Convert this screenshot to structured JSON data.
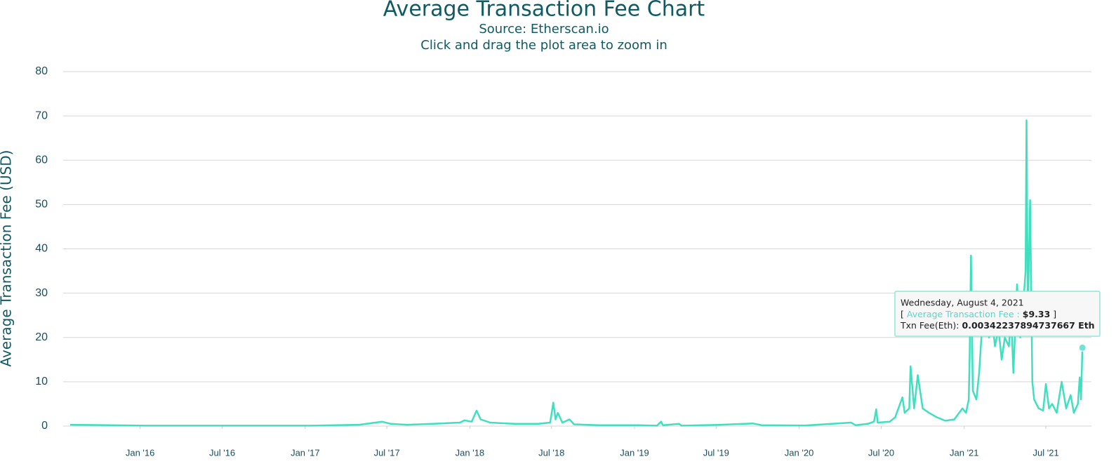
{
  "chart_data": {
    "type": "line",
    "title": "Average Transaction Fee Chart",
    "subtitle": "Source: Etherscan.io",
    "annotation": "Click and drag the plot area to zoom in",
    "y_label": "Average Transaction Fee (USD)",
    "x": [
      "2015-07-30",
      "2016-01-15",
      "2016-07-15",
      "2017-01-15",
      "2017-05-01",
      "2017-06-20",
      "2017-07-10",
      "2017-08-15",
      "2017-10-10",
      "2017-12-10",
      "2017-12-20",
      "2018-01-05",
      "2018-01-16",
      "2018-01-25",
      "2018-02-15",
      "2018-04-10",
      "2018-06-01",
      "2018-06-28",
      "2018-07-05",
      "2018-07-10",
      "2018-07-15",
      "2018-07-25",
      "2018-08-10",
      "2018-08-20",
      "2018-10-15",
      "2019-01-10",
      "2019-02-20",
      "2019-03-01",
      "2019-03-05",
      "2019-04-10",
      "2019-04-15",
      "2019-07-10",
      "2019-09-20",
      "2019-10-10",
      "2020-01-15",
      "2020-04-25",
      "2020-05-05",
      "2020-06-01",
      "2020-06-15",
      "2020-06-20",
      "2020-06-23",
      "2020-07-20",
      "2020-08-01",
      "2020-08-17",
      "2020-08-22",
      "2020-09-01",
      "2020-09-04",
      "2020-09-12",
      "2020-09-20",
      "2020-10-01",
      "2020-10-15",
      "2020-11-01",
      "2020-11-20",
      "2020-12-10",
      "2020-12-28",
      "2021-01-05",
      "2021-01-11",
      "2021-01-13",
      "2021-01-16",
      "2021-01-20",
      "2021-01-28",
      "2021-02-03",
      "2021-02-08",
      "2021-02-15",
      "2021-02-20",
      "2021-02-25",
      "2021-03-03",
      "2021-03-10",
      "2021-03-18",
      "2021-03-25",
      "2021-04-01",
      "2021-04-10",
      "2021-04-15",
      "2021-04-20",
      "2021-04-28",
      "2021-05-05",
      "2021-05-12",
      "2021-05-17",
      "2021-05-19",
      "2021-05-22",
      "2021-05-27",
      "2021-06-01",
      "2021-06-05",
      "2021-06-15",
      "2021-06-25",
      "2021-07-01",
      "2021-07-08",
      "2021-07-15",
      "2021-07-25",
      "2021-08-05",
      "2021-08-15",
      "2021-08-25",
      "2021-09-01",
      "2021-09-10",
      "2021-09-14",
      "2021-09-17",
      "2021-09-20"
    ],
    "series": [
      {
        "name": "Average Transaction Fee",
        "color": "#3fe0c0",
        "values": [
          0.3,
          0.1,
          0.1,
          0.1,
          0.3,
          1.0,
          0.5,
          0.3,
          0.5,
          0.8,
          1.3,
          1.0,
          3.5,
          1.5,
          0.8,
          0.5,
          0.5,
          0.8,
          5.3,
          1.5,
          3,
          0.8,
          1.5,
          0.4,
          0.2,
          0.2,
          0.1,
          1.0,
          0.2,
          0.5,
          0.1,
          0.3,
          0.6,
          0.2,
          0.15,
          0.8,
          0.2,
          0.5,
          1,
          3.8,
          0.8,
          1.0,
          2,
          6.5,
          3,
          4,
          13.5,
          4,
          11.5,
          4,
          3,
          2,
          1.2,
          1.5,
          4,
          3,
          6,
          16,
          38.5,
          8,
          6,
          12,
          20,
          25,
          30,
          20,
          25,
          18,
          22,
          15,
          20,
          18,
          25,
          12,
          32,
          20,
          28,
          35,
          69,
          25,
          51,
          10,
          6,
          4,
          3.5,
          9.5,
          4,
          5,
          3,
          10,
          4,
          7,
          3,
          5,
          11,
          6,
          17.7
        ]
      }
    ],
    "xlim": [
      "2015-07-30",
      "2021-10-10"
    ],
    "xticks": [
      {
        "value": "2016-01-01",
        "label": "Jan '16"
      },
      {
        "value": "2016-07-01",
        "label": "Jul '16"
      },
      {
        "value": "2017-01-01",
        "label": "Jan '17"
      },
      {
        "value": "2017-07-01",
        "label": "Jul '17"
      },
      {
        "value": "2018-01-01",
        "label": "Jan '18"
      },
      {
        "value": "2018-07-01",
        "label": "Jul '18"
      },
      {
        "value": "2019-01-01",
        "label": "Jan '19"
      },
      {
        "value": "2019-07-01",
        "label": "Jul '19"
      },
      {
        "value": "2020-01-01",
        "label": "Jan '20"
      },
      {
        "value": "2020-07-01",
        "label": "Jul '20"
      },
      {
        "value": "2021-01-01",
        "label": "Jan '21"
      },
      {
        "value": "2021-07-01",
        "label": "Jul '21"
      }
    ],
    "ylim": [
      0,
      80
    ],
    "yticks": [
      0,
      10,
      20,
      30,
      40,
      50,
      60,
      70,
      80
    ],
    "grid": true,
    "tooltip": {
      "date": "Wednesday, August 4, 2021",
      "open": "[",
      "separator": ":",
      "value": "$9.33",
      "close": "]",
      "eth_label": "Txn Fee(Eth):",
      "eth_value": "0.00342237894737667 Eth"
    }
  }
}
